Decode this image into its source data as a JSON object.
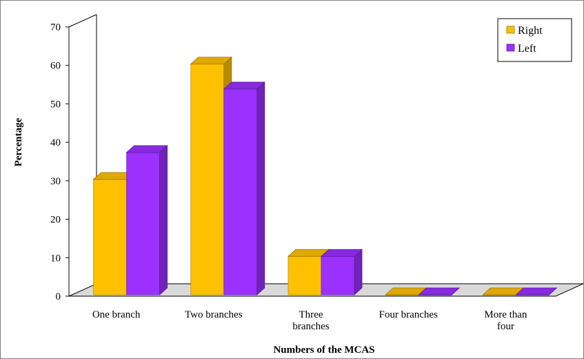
{
  "chart_data": {
    "type": "bar",
    "title": "",
    "xlabel": "Numbers of the MCAS",
    "ylabel": "Percentage",
    "ylim": [
      0,
      70
    ],
    "yticks": [
      0,
      10,
      20,
      30,
      40,
      50,
      60,
      70
    ],
    "categories": [
      [
        "One branch"
      ],
      [
        "Two branches"
      ],
      [
        "Three",
        "branches"
      ],
      [
        "Four branches"
      ],
      [
        "More than",
        "four"
      ]
    ],
    "series": [
      {
        "name": "Right",
        "color": "#ffc000",
        "values": [
          30,
          60,
          10,
          0,
          0
        ]
      },
      {
        "name": "Left",
        "color": "#9b30ff",
        "values": [
          37,
          53.5,
          10,
          0,
          0
        ]
      }
    ],
    "legend": "top-right",
    "grid": false
  }
}
